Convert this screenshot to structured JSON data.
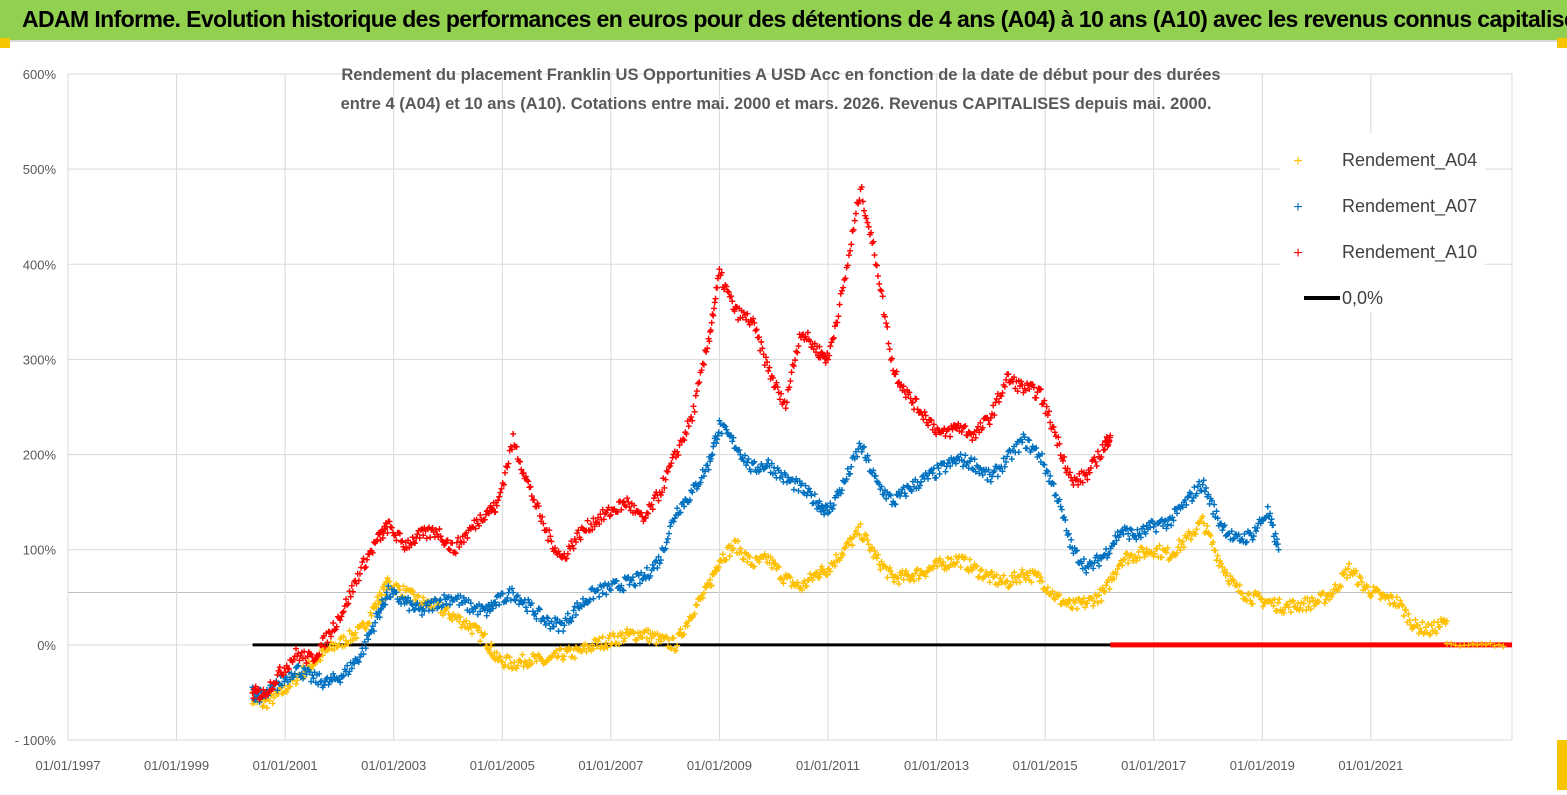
{
  "header": {
    "banner_title": "ADAM Informe. Evolution historique des performances en euros pour des détentions de 4 ans (A04) à 10 ans (A10) avec les revenus connus capitalisés"
  },
  "colors": {
    "banner_bg": "#92d050",
    "A04": "#ffc000",
    "A07": "#0070c0",
    "A10": "#ff0000",
    "zero_line": "#000000",
    "grid": "#d9d9d9"
  },
  "chart_data": {
    "type": "scatter",
    "title_lines": [
      "Rendement du placement Franklin US Opportunities A USD Acc en fonction de la date de début pour des durées",
      "entre 4 (A04) et 10 ans (A10).  Cotations entre mai. 2000 et mars. 2026. Revenus CAPITALISES depuis mai. 2000."
    ],
    "y_ticks": [
      "600%",
      "500%",
      "400%",
      "300%",
      "200%",
      "100%",
      "0%",
      "- 100%"
    ],
    "x_ticks": [
      "01/01/1997",
      "01/01/1999",
      "01/01/2001",
      "01/01/2003",
      "01/01/2005",
      "01/01/2007",
      "01/01/2009",
      "01/01/2011",
      "01/01/2013",
      "01/01/2015",
      "01/01/2017",
      "01/01/2019",
      "01/01/2021"
    ],
    "xlim": [
      1997.0,
      2023.6
    ],
    "ylim": [
      -100,
      600
    ],
    "legend": [
      {
        "label": "Rendement_A04",
        "color": "#ffc000",
        "marker": "+"
      },
      {
        "label": "Rendement_A07",
        "color": "#0070c0",
        "marker": "+"
      },
      {
        "label": "Rendement_A10",
        "color": "#ff0000",
        "marker": "+"
      },
      {
        "label": "0,0%",
        "color": "#000000",
        "marker": "line"
      }
    ],
    "legend_position": "top-right",
    "series": [
      {
        "name": "Rendement_A04",
        "x": [
          2000.4,
          2000.6,
          2000.9,
          2001.2,
          2001.5,
          2001.8,
          2002.1,
          2002.4,
          2002.7,
          2002.9,
          2003.2,
          2003.5,
          2003.8,
          2004.1,
          2004.4,
          2004.7,
          2004.9,
          2005.2,
          2005.5,
          2005.8,
          2006.1,
          2006.4,
          2006.7,
          2007.0,
          2007.3,
          2007.6,
          2007.9,
          2008.2,
          2008.5,
          2008.8,
          2009.0,
          2009.3,
          2009.6,
          2009.9,
          2010.2,
          2010.5,
          2010.8,
          2011.0,
          2011.3,
          2011.6,
          2011.9,
          2012.2,
          2012.5,
          2012.8,
          2013.1,
          2013.4,
          2013.7,
          2014.0,
          2014.3,
          2014.6,
          2014.9,
          2015.2,
          2015.5,
          2015.8,
          2016.1,
          2016.4,
          2016.7,
          2017.0,
          2017.3,
          2017.6,
          2017.9,
          2018.2,
          2018.5,
          2018.8,
          2019.1,
          2019.4,
          2019.7,
          2020.0,
          2020.3,
          2020.6,
          2020.9,
          2021.2,
          2021.5,
          2021.8,
          2022.1,
          2022.4
        ],
        "y": [
          -55,
          -62,
          -52,
          -35,
          -20,
          -5,
          5,
          15,
          45,
          65,
          55,
          45,
          40,
          30,
          20,
          5,
          -15,
          -20,
          -15,
          -18,
          -10,
          -8,
          0,
          5,
          10,
          12,
          5,
          0,
          35,
          60,
          90,
          105,
          85,
          90,
          70,
          60,
          75,
          80,
          100,
          120,
          90,
          70,
          72,
          78,
          85,
          90,
          80,
          70,
          65,
          75,
          70,
          50,
          40,
          45,
          55,
          90,
          95,
          100,
          95,
          110,
          130,
          90,
          60,
          50,
          45,
          40,
          42,
          45,
          55,
          80,
          60,
          50,
          45,
          20,
          15,
          25
        ]
      },
      {
        "name": "Rendement_A07",
        "x": [
          2000.4,
          2000.6,
          2000.9,
          2001.2,
          2001.5,
          2001.8,
          2002.1,
          2002.4,
          2002.7,
          2002.9,
          2003.2,
          2003.5,
          2003.8,
          2004.1,
          2004.4,
          2004.7,
          2004.9,
          2005.2,
          2005.5,
          2005.8,
          2006.1,
          2006.4,
          2006.7,
          2007.0,
          2007.3,
          2007.6,
          2007.9,
          2008.2,
          2008.5,
          2008.8,
          2009.0,
          2009.3,
          2009.6,
          2009.9,
          2010.2,
          2010.5,
          2010.8,
          2011.0,
          2011.3,
          2011.6,
          2011.9,
          2012.2,
          2012.5,
          2012.8,
          2013.1,
          2013.4,
          2013.7,
          2014.0,
          2014.3,
          2014.6,
          2014.9,
          2015.2,
          2015.5,
          2015.8,
          2016.1,
          2016.4,
          2016.7,
          2017.0,
          2017.3,
          2017.6,
          2017.9,
          2018.2,
          2018.5,
          2018.8,
          2019.1,
          2019.3
        ],
        "y": [
          -50,
          -55,
          -40,
          -25,
          -35,
          -40,
          -30,
          -10,
          30,
          55,
          45,
          35,
          45,
          50,
          40,
          35,
          45,
          55,
          40,
          25,
          20,
          40,
          55,
          60,
          65,
          70,
          90,
          140,
          160,
          190,
          230,
          210,
          185,
          190,
          175,
          165,
          150,
          140,
          170,
          210,
          170,
          150,
          165,
          175,
          185,
          195,
          190,
          175,
          195,
          215,
          200,
          160,
          100,
          80,
          95,
          120,
          115,
          125,
          130,
          150,
          170,
          130,
          110,
          115,
          140,
          100
        ]
      },
      {
        "name": "Rendement_A10",
        "x": [
          2000.4,
          2000.6,
          2000.9,
          2001.2,
          2001.5,
          2001.8,
          2002.1,
          2002.4,
          2002.7,
          2002.9,
          2003.2,
          2003.5,
          2003.8,
          2004.1,
          2004.4,
          2004.7,
          2004.9,
          2005.2,
          2005.5,
          2005.8,
          2006.1,
          2006.4,
          2006.7,
          2007.0,
          2007.3,
          2007.6,
          2007.9,
          2008.2,
          2008.5,
          2008.8,
          2009.0,
          2009.3,
          2009.6,
          2009.9,
          2010.2,
          2010.5,
          2010.8,
          2011.0,
          2011.3,
          2011.6,
          2011.9,
          2012.2,
          2012.5,
          2012.8,
          2013.1,
          2013.4,
          2013.7,
          2014.0,
          2014.3,
          2014.6,
          2014.9,
          2015.2,
          2015.5,
          2015.8,
          2016.1,
          2016.2
        ],
        "y": [
          -50,
          -52,
          -30,
          -10,
          -15,
          10,
          40,
          80,
          110,
          125,
          105,
          115,
          120,
          100,
          120,
          140,
          145,
          215,
          165,
          120,
          90,
          115,
          130,
          140,
          150,
          130,
          160,
          200,
          240,
          320,
          390,
          350,
          340,
          290,
          250,
          330,
          310,
          300,
          380,
          480,
          400,
          290,
          260,
          240,
          220,
          230,
          220,
          240,
          280,
          270,
          265,
          220,
          170,
          180,
          210,
          220
        ]
      },
      {
        "name": "0,0%",
        "x": [
          2000.4,
          2023.6
        ],
        "y": [
          0,
          0
        ]
      }
    ],
    "zero_series_A10_tail": {
      "x": [
        2016.2,
        2023.6
      ],
      "y": [
        0,
        0
      ]
    }
  }
}
